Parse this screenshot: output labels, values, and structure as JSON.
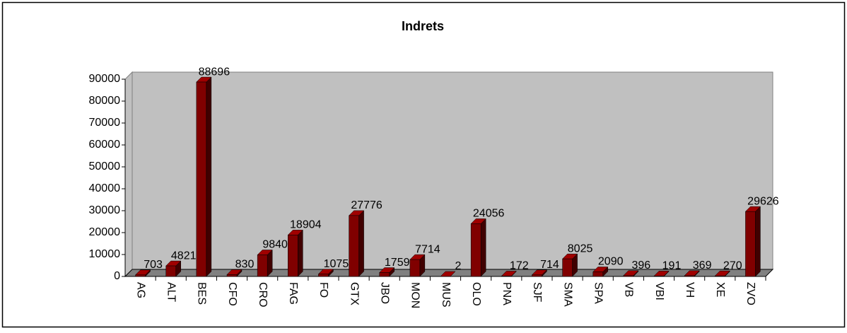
{
  "chart_data": {
    "type": "bar",
    "title": "Indrets",
    "categories": [
      "AG",
      "ALT",
      "BES",
      "CFO",
      "CRO",
      "FAG",
      "FO",
      "GTX",
      "JBO",
      "MON",
      "MUS",
      "OLO",
      "PNA",
      "SJF",
      "SMA",
      "SPA",
      "VB",
      "VBI",
      "VH",
      "XE",
      "ZVO"
    ],
    "values": [
      703,
      4821,
      88696,
      830,
      9840,
      18904,
      1075,
      27776,
      1759,
      7714,
      2,
      24056,
      172,
      714,
      8025,
      2090,
      396,
      191,
      369,
      270,
      29626
    ],
    "color": "#800000",
    "ylim": [
      0,
      90000
    ],
    "yticks": [
      0,
      10000,
      20000,
      30000,
      40000,
      50000,
      60000,
      70000,
      80000,
      90000
    ],
    "grid": false
  }
}
